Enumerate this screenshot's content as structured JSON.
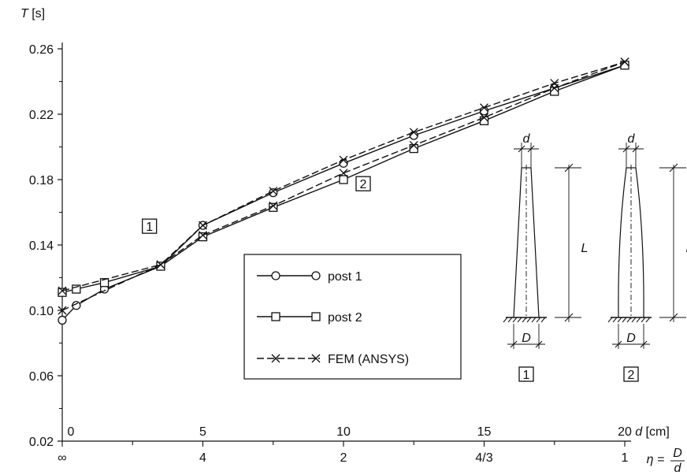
{
  "chart_data": {
    "type": "line",
    "ylabel": "T [s]",
    "yticks": [
      "0.02",
      "0.06",
      "0.10",
      "0.14",
      "0.18",
      "0.22",
      "0.26"
    ],
    "ylim": [
      0.02,
      0.26
    ],
    "xlim": [
      0,
      20
    ],
    "xlabel": "d [cm]",
    "xticks": [
      {
        "value": 0,
        "label": "0"
      },
      {
        "value": 5,
        "label": "5"
      },
      {
        "value": 10,
        "label": "10"
      },
      {
        "value": 15,
        "label": "15"
      },
      {
        "value": 20,
        "label": "20"
      }
    ],
    "eta_label_left": "η =",
    "eta_frac_num": "D",
    "eta_frac_den": "d",
    "eta_ticks": [
      {
        "value": 0,
        "label": "∞"
      },
      {
        "value": 5,
        "label": "4"
      },
      {
        "value": 10,
        "label": "2"
      },
      {
        "value": 15,
        "label": "4/3"
      },
      {
        "value": 20,
        "label": "1"
      }
    ],
    "series": [
      {
        "name": "post 1",
        "marker": "circle",
        "dash": false,
        "x": [
          0,
          0.5,
          1.5,
          3.5,
          5,
          7.5,
          10,
          12.5,
          15,
          17.5,
          20
        ],
        "y": [
          0.094,
          0.103,
          0.113,
          0.127,
          0.152,
          0.172,
          0.19,
          0.207,
          0.222,
          0.236,
          0.25
        ]
      },
      {
        "name": "post 2",
        "marker": "square",
        "dash": false,
        "x": [
          0,
          0.5,
          1.5,
          3.5,
          5,
          7.5,
          10,
          12.5,
          15,
          17.5,
          20
        ],
        "y": [
          0.111,
          0.113,
          0.117,
          0.127,
          0.145,
          0.163,
          0.18,
          0.199,
          0.216,
          0.234,
          0.25
        ]
      },
      {
        "name": "FEM (ANSYS)",
        "marker": "x",
        "dash": true,
        "x": [
          0,
          3.5,
          5,
          7.5,
          10,
          12.5,
          15,
          17.5,
          20
        ],
        "y": [
          0.1,
          0.128,
          0.152,
          0.173,
          0.192,
          0.209,
          0.224,
          0.239,
          0.252
        ]
      },
      {
        "name": "",
        "marker": "x",
        "dash": true,
        "x": [
          0,
          3.5,
          5,
          7.5,
          10,
          12.5,
          15,
          17.5,
          20
        ],
        "y": [
          0.112,
          0.128,
          0.146,
          0.164,
          0.184,
          0.201,
          0.218,
          0.236,
          0.252
        ]
      }
    ],
    "annotations": [
      {
        "label": "1",
        "x": 3.1,
        "y": 0.1515
      },
      {
        "label": "2",
        "x": 10.7,
        "y": 0.1775
      }
    ],
    "legend_placement": "center",
    "grid": false,
    "diagrams": {
      "top_label": "d",
      "height_label": "L",
      "bottom_label": "D",
      "captions": [
        "1",
        "2"
      ]
    }
  }
}
